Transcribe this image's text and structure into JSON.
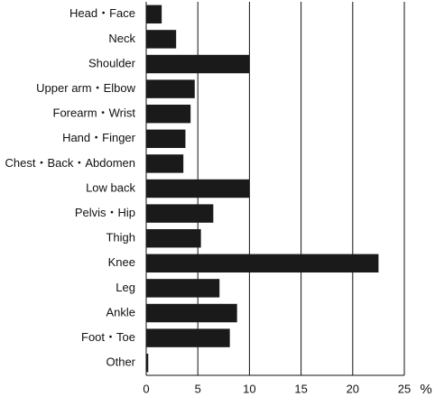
{
  "chart_data": {
    "type": "bar",
    "orientation": "horizontal",
    "categories": [
      "Head・Face",
      "Neck",
      "Shoulder",
      "Upper arm・Elbow",
      "Forearm・Wrist",
      "Hand・Finger",
      "Chest・Back・Abdomen",
      "Low back",
      "Pelvis・Hip",
      "Thigh",
      "Knee",
      "Leg",
      "Ankle",
      "Foot・Toe",
      "Other"
    ],
    "values": [
      1.5,
      2.9,
      10,
      4.7,
      4.3,
      3.8,
      3.6,
      10,
      6.5,
      5.3,
      22.5,
      7.1,
      8.8,
      8.1,
      0.2
    ],
    "color": "#1a1a1a",
    "x_label": "%",
    "xlim": [
      0,
      25
    ],
    "xticks": [
      0,
      5,
      10,
      15,
      20,
      25
    ],
    "grid": true
  }
}
